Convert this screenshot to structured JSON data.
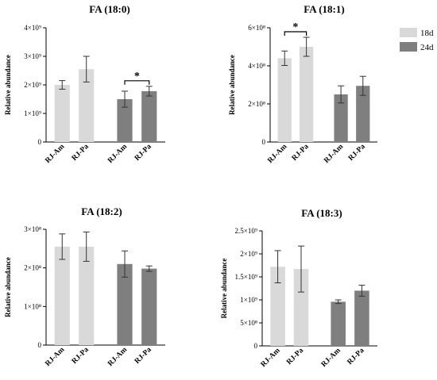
{
  "legend": [
    {
      "label": "18d",
      "color": "#d9d9d9"
    },
    {
      "label": "24d",
      "color": "#7f7f7f"
    }
  ],
  "chart_data": [
    {
      "type": "bar",
      "title": "FA (18:0)",
      "ylabel": "Relative abundance",
      "categories": [
        "RJ-Am",
        "RJ-Pa",
        "RJ-Am",
        "RJ-Pa"
      ],
      "groups": [
        "18d",
        "18d",
        "24d",
        "24d"
      ],
      "values": [
        2000000000.0,
        2550000000.0,
        1500000000.0,
        1780000000.0
      ],
      "errors": [
        150000000.0,
        450000000.0,
        280000000.0,
        170000000.0
      ],
      "ylim": [
        0,
        4000000000.0
      ],
      "yticks": [
        0,
        1000000000.0,
        2000000000.0,
        3000000000.0,
        4000000000.0
      ],
      "ytick_labels": [
        "0",
        "1×10⁹",
        "2×10⁹",
        "3×10⁹",
        "4×10⁹"
      ],
      "significance": [
        {
          "between": [
            2,
            3
          ],
          "label": "*"
        }
      ]
    },
    {
      "type": "bar",
      "title": "FA (18:1)",
      "ylabel": "Relative abundance",
      "categories": [
        "RJ-Am",
        "RJ-Pa",
        "RJ-Am",
        "RJ-Pa"
      ],
      "groups": [
        "18d",
        "18d",
        "24d",
        "24d"
      ],
      "values": [
        440000000.0,
        500000000.0,
        250000000.0,
        295000000.0
      ],
      "errors": [
        38000000.0,
        50000000.0,
        45000000.0,
        50000000.0
      ],
      "ylim": [
        0,
        600000000.0
      ],
      "yticks": [
        0,
        200000000.0,
        400000000.0,
        600000000.0
      ],
      "ytick_labels": [
        "0",
        "2×10⁸",
        "4×10⁸",
        "6×10⁸"
      ],
      "significance": [
        {
          "between": [
            0,
            1
          ],
          "label": "*"
        }
      ]
    },
    {
      "type": "bar",
      "title": "FA (18:2)",
      "ylabel": "Relative abundance",
      "categories": [
        "RJ-Am",
        "RJ-Pa",
        "RJ-Am",
        "RJ-Pa"
      ],
      "groups": [
        "18d",
        "18d",
        "24d",
        "24d"
      ],
      "values": [
        255000000.0,
        255000000.0,
        210000000.0,
        198000000.0
      ],
      "errors": [
        33000000.0,
        38000000.0,
        34000000.0,
        7000000.0
      ],
      "ylim": [
        0,
        300000000.0
      ],
      "yticks": [
        0,
        100000000.0,
        200000000.0,
        300000000.0
      ],
      "ytick_labels": [
        "0",
        "1×10⁸",
        "2×10⁸",
        "3×10⁸"
      ],
      "significance": []
    },
    {
      "type": "bar",
      "title": "FA (18:3)",
      "ylabel": "Relative abundance",
      "categories": [
        "RJ-Am",
        "RJ-Pa",
        "RJ-Am",
        "RJ-Pa"
      ],
      "groups": [
        "18d",
        "18d",
        "24d",
        "24d"
      ],
      "values": [
        1720000000.0,
        1670000000.0,
        960000000.0,
        1200000000.0
      ],
      "errors": [
        350000000.0,
        500000000.0,
        40000000.0,
        120000000.0
      ],
      "ylim": [
        0,
        2500000000.0
      ],
      "yticks": [
        0,
        500000000.0,
        1000000000.0,
        1500000000.0,
        2000000000.0,
        2500000000.0
      ],
      "ytick_labels": [
        "0",
        "5×10⁸",
        "1×10⁹",
        "1.5×10⁹",
        "2×10⁹",
        "2.5×10⁹"
      ],
      "significance": []
    }
  ]
}
